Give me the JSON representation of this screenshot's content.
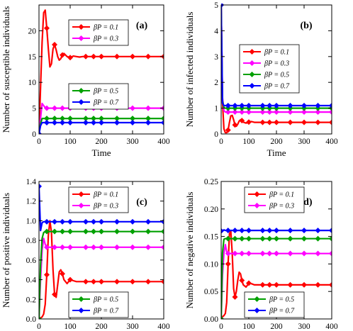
{
  "chart_data": [
    {
      "type": "line",
      "panel_label": "(a)",
      "xlabel": "Time",
      "ylabel": "Number of susceptible individuals",
      "xlim": [
        0,
        400
      ],
      "ylim": [
        0,
        25
      ],
      "xticks": [
        "0",
        "100",
        "200",
        "300",
        "400"
      ],
      "yticks": [
        "0",
        "5",
        "10",
        "15",
        "20"
      ],
      "x": [
        0,
        5,
        10,
        15,
        20,
        25,
        30,
        35,
        40,
        45,
        50,
        55,
        60,
        65,
        70,
        75,
        80,
        90,
        100,
        110,
        120,
        130,
        140,
        150,
        175,
        200,
        250,
        300,
        350,
        400
      ],
      "series": [
        {
          "name": "βP = 0.1",
          "color": "#ff0000",
          "values": [
            0,
            9,
            17.8,
            23.5,
            24,
            20.5,
            16.5,
            13,
            13.6,
            16.5,
            17.3,
            16.3,
            15,
            14.3,
            14.6,
            15.3,
            15.6,
            15.0,
            14.8,
            15.1,
            15.0,
            14.9,
            15.0,
            15.0,
            15.0,
            15.0,
            15.0,
            15.0,
            15.0,
            15.0
          ]
        },
        {
          "name": "βP = 0.3",
          "color": "#ff00ff",
          "values": [
            0,
            3,
            5.9,
            5.5,
            5.1,
            5.0,
            5.0,
            5.0,
            5.0,
            5.0,
            5.0,
            5.0,
            5.0,
            5.0,
            5.0,
            5.0,
            5.0,
            5.0,
            5.0,
            5.0,
            5.0,
            5.0,
            5.0,
            5.0,
            5.0,
            5.0,
            5.0,
            5.0,
            5.0,
            5.0
          ]
        },
        {
          "name": "βP = 0.5",
          "color": "#00a000",
          "values": [
            0,
            2,
            3.0,
            3.0,
            3.0,
            3.0,
            3.0,
            3.0,
            3.0,
            3.0,
            3.0,
            3.0,
            3.0,
            3.0,
            3.0,
            3.0,
            3.0,
            3.0,
            3.0,
            3.0,
            3.0,
            3.0,
            3.0,
            3.0,
            3.0,
            3.0,
            3.0,
            3.0,
            3.0,
            3.0
          ]
        },
        {
          "name": "βP = 0.7",
          "color": "#0000ff",
          "values": [
            0,
            1.6,
            2.2,
            2.2,
            2.2,
            2.2,
            2.2,
            2.2,
            2.2,
            2.2,
            2.2,
            2.2,
            2.2,
            2.2,
            2.2,
            2.2,
            2.2,
            2.2,
            2.2,
            2.2,
            2.2,
            2.2,
            2.2,
            2.2,
            2.2,
            2.2,
            2.2,
            2.2,
            2.2,
            2.2
          ]
        }
      ],
      "legend_placement": "right, split top and middle"
    },
    {
      "type": "line",
      "panel_label": "(b)",
      "xlabel": "Time",
      "ylabel": "Number of infected individuals",
      "xlim": [
        0,
        400
      ],
      "ylim": [
        0,
        5
      ],
      "xticks": [
        "0",
        "100",
        "200",
        "300",
        "400"
      ],
      "yticks": [
        "0",
        "1",
        "2",
        "3",
        "4",
        "5"
      ],
      "x": [
        0,
        5,
        10,
        15,
        20,
        25,
        30,
        35,
        40,
        45,
        50,
        55,
        60,
        65,
        70,
        75,
        80,
        90,
        100,
        110,
        120,
        130,
        140,
        150,
        175,
        200,
        250,
        300,
        350,
        400
      ],
      "series": [
        {
          "name": "βP = 0.1",
          "color": "#ff0000",
          "values": [
            5,
            1.2,
            0.2,
            0.05,
            0.05,
            0.15,
            0.45,
            0.7,
            0.72,
            0.55,
            0.35,
            0.3,
            0.38,
            0.5,
            0.55,
            0.52,
            0.46,
            0.42,
            0.46,
            0.48,
            0.45,
            0.45,
            0.45,
            0.45,
            0.45,
            0.45,
            0.45,
            0.45,
            0.45,
            0.45
          ]
        },
        {
          "name": "βP = 0.3",
          "color": "#ff00ff",
          "values": [
            5,
            1.4,
            0.9,
            0.85,
            0.85,
            0.85,
            0.85,
            0.85,
            0.85,
            0.85,
            0.85,
            0.85,
            0.85,
            0.85,
            0.85,
            0.85,
            0.85,
            0.85,
            0.85,
            0.85,
            0.85,
            0.85,
            0.85,
            0.85,
            0.85,
            0.85,
            0.85,
            0.85,
            0.85,
            0.85
          ]
        },
        {
          "name": "βP = 0.5",
          "color": "#00a000",
          "values": [
            5,
            1.3,
            1.02,
            1.0,
            1.0,
            1.0,
            1.0,
            1.0,
            1.0,
            1.0,
            1.0,
            1.0,
            1.0,
            1.0,
            1.0,
            1.0,
            1.0,
            1.0,
            1.0,
            1.0,
            1.0,
            1.0,
            1.0,
            1.0,
            1.0,
            1.0,
            1.0,
            1.0,
            1.0,
            1.0
          ]
        },
        {
          "name": "βP = 0.7",
          "color": "#0000ff",
          "values": [
            5,
            1.2,
            1.1,
            1.1,
            1.1,
            1.1,
            1.1,
            1.1,
            1.1,
            1.1,
            1.1,
            1.1,
            1.1,
            1.1,
            1.1,
            1.1,
            1.1,
            1.1,
            1.1,
            1.1,
            1.1,
            1.1,
            1.1,
            1.1,
            1.1,
            1.1,
            1.1,
            1.1,
            1.1,
            1.1
          ]
        }
      ],
      "legend_placement": "right, middle"
    },
    {
      "type": "line",
      "panel_label": "(c)",
      "xlabel": "Time",
      "ylabel": "Number of positive individuals",
      "xlim": [
        0,
        400
      ],
      "ylim": [
        0,
        1.4
      ],
      "xticks": [
        "0",
        "100",
        "200",
        "300",
        "400"
      ],
      "yticks": [
        "0.0",
        "0.2",
        "0.4",
        "0.6",
        "0.8",
        "1.0",
        "1.2",
        "1.4"
      ],
      "x": [
        0,
        5,
        10,
        15,
        20,
        25,
        30,
        35,
        40,
        45,
        50,
        55,
        60,
        65,
        70,
        75,
        80,
        90,
        100,
        110,
        120,
        130,
        140,
        150,
        175,
        200,
        250,
        300,
        350,
        400
      ],
      "series": [
        {
          "name": "βP = 0.1",
          "color": "#ff0000",
          "values": [
            0,
            0.01,
            0.02,
            0.05,
            0.15,
            0.45,
            0.85,
            1.0,
            0.88,
            0.5,
            0.25,
            0.22,
            0.35,
            0.48,
            0.5,
            0.46,
            0.4,
            0.36,
            0.4,
            0.39,
            0.38,
            0.38,
            0.38,
            0.38,
            0.38,
            0.38,
            0.38,
            0.38,
            0.38,
            0.38
          ]
        },
        {
          "name": "βP = 0.3",
          "color": "#ff00ff",
          "values": [
            0,
            0.4,
            0.7,
            0.82,
            0.76,
            0.73,
            0.73,
            0.73,
            0.73,
            0.73,
            0.73,
            0.73,
            0.73,
            0.73,
            0.73,
            0.73,
            0.73,
            0.73,
            0.73,
            0.73,
            0.73,
            0.73,
            0.73,
            0.73,
            0.73,
            0.73,
            0.73,
            0.73,
            0.73,
            0.73
          ]
        },
        {
          "name": "βP = 0.5",
          "color": "#00a000",
          "values": [
            0,
            0.55,
            0.82,
            0.88,
            0.89,
            0.89,
            0.89,
            0.89,
            0.89,
            0.89,
            0.89,
            0.89,
            0.89,
            0.89,
            0.89,
            0.89,
            0.89,
            0.89,
            0.89,
            0.89,
            0.89,
            0.89,
            0.89,
            0.89,
            0.89,
            0.89,
            0.89,
            0.89,
            0.89,
            0.89
          ]
        },
        {
          "name": "βP = 0.7",
          "color": "#0000ff",
          "values": [
            1.35,
            0.9,
            0.98,
            0.99,
            0.99,
            0.99,
            0.99,
            0.99,
            0.99,
            0.99,
            0.99,
            0.99,
            0.99,
            0.99,
            0.99,
            0.99,
            0.99,
            0.99,
            0.99,
            0.99,
            0.99,
            0.99,
            0.99,
            0.99,
            0.99,
            0.99,
            0.99,
            0.99,
            0.99,
            0.99
          ]
        }
      ],
      "legend_placement": "right, split top and bottom"
    },
    {
      "type": "line",
      "panel_label": "(d)",
      "xlabel": "Time",
      "ylabel": "Number of negative individuals",
      "xlim": [
        0,
        400
      ],
      "ylim": [
        0,
        0.25
      ],
      "xticks": [
        "0",
        "100",
        "200",
        "300",
        "400"
      ],
      "yticks": [
        "0.00",
        "0.05",
        "0.10",
        "0.15",
        "0.20",
        "0.25"
      ],
      "x": [
        0,
        5,
        10,
        15,
        20,
        25,
        30,
        35,
        40,
        45,
        50,
        55,
        60,
        65,
        70,
        75,
        80,
        90,
        100,
        110,
        120,
        130,
        140,
        150,
        175,
        200,
        250,
        300,
        350,
        400
      ],
      "series": [
        {
          "name": "βP = 0.1",
          "color": "#ff0000",
          "values": [
            0,
            0.004,
            0.006,
            0.01,
            0.03,
            0.1,
            0.155,
            0.16,
            0.12,
            0.055,
            0.04,
            0.05,
            0.07,
            0.085,
            0.082,
            0.07,
            0.062,
            0.058,
            0.065,
            0.064,
            0.062,
            0.062,
            0.062,
            0.062,
            0.062,
            0.062,
            0.062,
            0.062,
            0.062,
            0.062
          ]
        },
        {
          "name": "βP = 0.3",
          "color": "#ff00ff",
          "values": [
            0,
            0.08,
            0.12,
            0.135,
            0.122,
            0.119,
            0.119,
            0.119,
            0.119,
            0.119,
            0.119,
            0.119,
            0.119,
            0.119,
            0.119,
            0.119,
            0.119,
            0.119,
            0.119,
            0.119,
            0.119,
            0.119,
            0.119,
            0.119,
            0.119,
            0.119,
            0.119,
            0.119,
            0.119,
            0.119
          ]
        },
        {
          "name": "βP = 0.5",
          "color": "#00a000",
          "values": [
            0,
            0.12,
            0.145,
            0.146,
            0.146,
            0.146,
            0.146,
            0.146,
            0.146,
            0.146,
            0.146,
            0.146,
            0.146,
            0.146,
            0.146,
            0.146,
            0.146,
            0.146,
            0.146,
            0.146,
            0.146,
            0.146,
            0.146,
            0.146,
            0.146,
            0.146,
            0.146,
            0.146,
            0.146,
            0.146
          ]
        },
        {
          "name": "βP = 0.7",
          "color": "#0000ff",
          "values": [
            0.16,
            0.16,
            0.162,
            0.161,
            0.161,
            0.161,
            0.161,
            0.161,
            0.161,
            0.161,
            0.161,
            0.161,
            0.161,
            0.161,
            0.161,
            0.161,
            0.161,
            0.161,
            0.161,
            0.161,
            0.161,
            0.161,
            0.161,
            0.161,
            0.161,
            0.161,
            0.161,
            0.161,
            0.161,
            0.161
          ]
        }
      ],
      "legend_placement": "right, split top and bottom"
    }
  ]
}
